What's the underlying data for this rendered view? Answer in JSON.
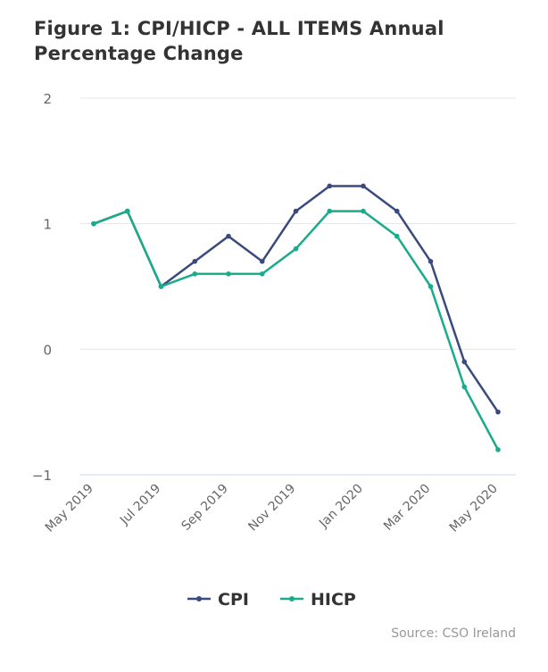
{
  "title": "Figure 1: CPI/HICP - ALL ITEMS Annual Percentage Change",
  "source": "Source: CSO Ireland",
  "chart_data": {
    "type": "line",
    "title": "Figure 1: CPI/HICP - ALL ITEMS Annual Percentage Change",
    "xlabel": "",
    "ylabel": "",
    "ylim": [
      -1,
      2
    ],
    "yticks": [
      "2",
      "1",
      "0",
      "−1"
    ],
    "grid": true,
    "legend_position": "bottom-center",
    "x": [
      "May 2019",
      "Jun 2019",
      "Jul 2019",
      "Aug 2019",
      "Sep 2019",
      "Oct 2019",
      "Nov 2019",
      "Dec 2019",
      "Jan 2020",
      "Feb 2020",
      "Mar 2020",
      "Apr 2020",
      "May 2020"
    ],
    "x_tick_labels": [
      "May 2019",
      "Jul 2019",
      "Sep 2019",
      "Nov 2019",
      "Jan 2020",
      "Mar 2020",
      "May 2020"
    ],
    "series": [
      {
        "name": "CPI",
        "color": "#3b4a7d",
        "values": [
          1.0,
          1.1,
          0.5,
          0.7,
          0.9,
          0.7,
          1.1,
          1.3,
          1.3,
          1.1,
          0.7,
          -0.1,
          -0.5
        ]
      },
      {
        "name": "HICP",
        "color": "#1aab8a",
        "values": [
          1.0,
          1.1,
          0.5,
          0.6,
          0.6,
          0.6,
          0.8,
          1.1,
          1.1,
          0.9,
          0.5,
          -0.3,
          -0.8
        ]
      }
    ]
  }
}
